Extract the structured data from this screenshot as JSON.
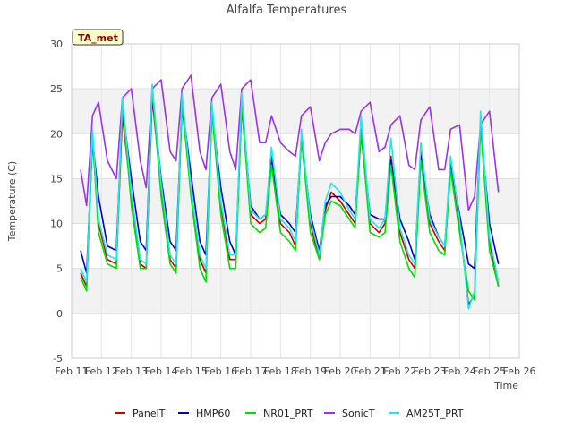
{
  "chart_data": {
    "type": "line",
    "title": "Alfalfa Temperatures",
    "xlabel": "Time",
    "ylabel": "Temperature (C)",
    "station_badge": "TA_met",
    "ylim": [
      -5,
      30
    ],
    "yticks": [
      -5,
      0,
      5,
      10,
      15,
      20,
      25,
      30
    ],
    "xlim": [
      11,
      26
    ],
    "xticks": [
      {
        "value": 11,
        "label": "Feb 11"
      },
      {
        "value": 12,
        "label": "Feb 12"
      },
      {
        "value": 13,
        "label": "Feb 13"
      },
      {
        "value": 14,
        "label": "Feb 14"
      },
      {
        "value": 15,
        "label": "Feb 15"
      },
      {
        "value": 16,
        "label": "Feb 16"
      },
      {
        "value": 17,
        "label": "Feb 17"
      },
      {
        "value": 18,
        "label": "Feb 18"
      },
      {
        "value": 19,
        "label": "Feb 19"
      },
      {
        "value": 20,
        "label": "Feb 20"
      },
      {
        "value": 21,
        "label": "Feb 21"
      },
      {
        "value": 22,
        "label": "Feb 22"
      },
      {
        "value": 23,
        "label": "Feb 23"
      },
      {
        "value": 24,
        "label": "Feb 24"
      },
      {
        "value": 25,
        "label": "Feb 25"
      },
      {
        "value": 26,
        "label": "Feb 26"
      }
    ],
    "grid": true,
    "legend_position": "bottom",
    "series": [
      {
        "name": "PanelT",
        "color": "#d00000",
        "x": [
          11.3,
          11.5,
          11.7,
          11.9,
          12.2,
          12.5,
          12.7,
          13.0,
          13.3,
          13.5,
          13.7,
          14.0,
          14.3,
          14.5,
          14.7,
          15.0,
          15.3,
          15.5,
          15.7,
          16.0,
          16.3,
          16.5,
          16.7,
          17.0,
          17.3,
          17.5,
          17.7,
          18.0,
          18.3,
          18.5,
          18.7,
          19.0,
          19.3,
          19.5,
          19.7,
          20.0,
          20.3,
          20.5,
          20.7,
          21.0,
          21.3,
          21.5,
          21.7,
          22.0,
          22.3,
          22.5,
          22.7,
          23.0,
          23.3,
          23.5,
          23.7,
          24.0,
          24.3,
          24.5,
          24.7,
          25.0,
          25.3
        ],
        "y": [
          4.5,
          3.0,
          19.5,
          10.0,
          6.0,
          5.5,
          22.0,
          13.0,
          5.5,
          5.0,
          24.0,
          14.0,
          6.0,
          5.0,
          23.0,
          14.0,
          6.0,
          4.5,
          22.5,
          12.0,
          6.0,
          6.0,
          23.0,
          11.0,
          10.0,
          10.5,
          17.5,
          10.0,
          9.0,
          7.5,
          19.5,
          10.0,
          6.0,
          11.5,
          13.5,
          12.5,
          11.0,
          10.0,
          20.0,
          10.0,
          9.0,
          10.0,
          17.5,
          9.0,
          6.0,
          5.0,
          18.0,
          10.0,
          8.0,
          7.0,
          17.0,
          10.0,
          1.0,
          2.0,
          21.5,
          8.0,
          3.0
        ]
      },
      {
        "name": "HMP60",
        "color": "#0000cc",
        "x": [
          11.3,
          11.5,
          11.7,
          11.9,
          12.2,
          12.5,
          12.7,
          13.0,
          13.3,
          13.5,
          13.7,
          14.0,
          14.3,
          14.5,
          14.7,
          15.0,
          15.3,
          15.5,
          15.7,
          16.0,
          16.3,
          16.5,
          16.7,
          17.0,
          17.3,
          17.5,
          17.7,
          18.0,
          18.3,
          18.5,
          18.7,
          19.0,
          19.3,
          19.5,
          19.7,
          20.0,
          20.3,
          20.5,
          20.7,
          21.0,
          21.3,
          21.5,
          21.7,
          22.0,
          22.3,
          22.5,
          22.7,
          23.0,
          23.3,
          23.5,
          23.7,
          24.0,
          24.3,
          24.5,
          24.7,
          25.0,
          25.3
        ],
        "y": [
          7.0,
          4.5,
          19.5,
          13.0,
          7.5,
          7.0,
          23.0,
          15.0,
          8.0,
          7.0,
          24.5,
          15.0,
          8.0,
          7.0,
          23.5,
          15.5,
          8.0,
          6.5,
          22.5,
          14.0,
          8.0,
          6.5,
          23.5,
          12.0,
          10.5,
          11.0,
          17.0,
          11.0,
          10.0,
          9.0,
          19.5,
          11.0,
          7.0,
          12.0,
          13.0,
          13.0,
          12.0,
          11.0,
          20.5,
          11.0,
          10.5,
          10.5,
          17.0,
          10.5,
          8.0,
          6.0,
          17.5,
          11.0,
          8.5,
          7.5,
          16.5,
          11.0,
          5.5,
          5.0,
          21.0,
          10.0,
          5.5
        ]
      },
      {
        "name": "NR01_PRT",
        "color": "#00dd00",
        "x": [
          11.3,
          11.5,
          11.7,
          11.9,
          12.2,
          12.5,
          12.7,
          13.0,
          13.3,
          13.5,
          13.7,
          14.0,
          14.3,
          14.5,
          14.7,
          15.0,
          15.3,
          15.5,
          15.7,
          16.0,
          16.3,
          16.5,
          16.7,
          17.0,
          17.3,
          17.5,
          17.7,
          18.0,
          18.3,
          18.5,
          18.7,
          19.0,
          19.3,
          19.5,
          19.7,
          20.0,
          20.3,
          20.5,
          20.7,
          21.0,
          21.3,
          21.5,
          21.7,
          22.0,
          22.3,
          22.5,
          22.7,
          23.0,
          23.3,
          23.5,
          23.7,
          24.0,
          24.3,
          24.5,
          24.7,
          25.0,
          25.3
        ],
        "y": [
          4.0,
          2.5,
          20.0,
          9.0,
          5.5,
          5.0,
          23.5,
          12.0,
          5.0,
          5.0,
          25.0,
          13.0,
          5.5,
          4.5,
          23.5,
          13.0,
          5.0,
          3.5,
          22.5,
          11.0,
          5.0,
          5.0,
          23.5,
          10.0,
          9.0,
          9.5,
          16.5,
          9.0,
          8.0,
          7.0,
          19.5,
          9.0,
          6.0,
          11.0,
          12.5,
          12.0,
          10.5,
          9.5,
          20.5,
          9.0,
          8.5,
          9.0,
          16.5,
          8.0,
          5.0,
          4.0,
          17.0,
          9.0,
          7.0,
          6.5,
          16.0,
          9.0,
          2.5,
          1.5,
          21.0,
          7.0,
          3.0
        ]
      },
      {
        "name": "SonicT",
        "color": "#9933ee",
        "x": [
          11.3,
          11.5,
          11.7,
          11.9,
          12.2,
          12.5,
          12.7,
          13.0,
          13.3,
          13.5,
          13.7,
          14.0,
          14.3,
          14.5,
          14.7,
          15.0,
          15.3,
          15.5,
          15.7,
          16.0,
          16.3,
          16.5,
          16.7,
          17.0,
          17.3,
          17.5,
          17.7,
          18.0,
          18.3,
          18.5,
          18.7,
          19.0,
          19.3,
          19.5,
          19.7,
          20.0,
          20.3,
          20.5,
          20.7,
          21.0,
          21.3,
          21.5,
          21.7,
          22.0,
          22.3,
          22.5,
          22.7,
          23.0,
          23.3,
          23.5,
          23.7,
          24.0,
          24.3,
          24.5,
          24.7,
          25.0,
          25.3
        ],
        "y": [
          16.0,
          12.0,
          22.0,
          23.5,
          17.0,
          15.0,
          24.0,
          25.0,
          17.0,
          14.0,
          25.0,
          26.0,
          18.0,
          17.0,
          25.0,
          26.5,
          18.0,
          16.0,
          24.0,
          25.5,
          18.0,
          16.0,
          25.0,
          26.0,
          19.0,
          19.0,
          22.0,
          19.0,
          18.0,
          17.5,
          22.0,
          23.0,
          17.0,
          19.0,
          20.0,
          20.5,
          20.5,
          20.0,
          22.5,
          23.5,
          18.0,
          18.5,
          21.0,
          22.0,
          16.5,
          16.0,
          21.5,
          23.0,
          16.0,
          16.0,
          20.5,
          21.0,
          11.5,
          13.0,
          21.0,
          22.5,
          13.5
        ]
      },
      {
        "name": "AM25T_PRT",
        "color": "#22e5ee",
        "x": [
          11.3,
          11.5,
          11.7,
          11.9,
          12.2,
          12.5,
          12.7,
          13.0,
          13.3,
          13.5,
          13.7,
          14.0,
          14.3,
          14.5,
          14.7,
          15.0,
          15.3,
          15.5,
          15.7,
          16.0,
          16.3,
          16.5,
          16.7,
          17.0,
          17.3,
          17.5,
          17.7,
          18.0,
          18.3,
          18.5,
          18.7,
          19.0,
          19.3,
          19.5,
          19.7,
          20.0,
          20.3,
          20.5,
          20.7,
          21.0,
          21.3,
          21.5,
          21.7,
          22.0,
          22.3,
          22.5,
          22.7,
          23.0,
          23.3,
          23.5,
          23.7,
          24.0,
          24.3,
          24.5,
          24.7,
          25.0,
          25.3
        ],
        "y": [
          5.0,
          3.5,
          20.5,
          10.5,
          6.5,
          6.0,
          24.0,
          13.5,
          6.0,
          5.5,
          25.5,
          14.5,
          6.5,
          5.5,
          24.5,
          14.0,
          6.5,
          5.0,
          23.5,
          12.5,
          6.5,
          6.5,
          24.5,
          11.5,
          10.5,
          11.0,
          18.5,
          10.5,
          9.5,
          8.0,
          20.5,
          10.5,
          6.5,
          12.5,
          14.5,
          13.5,
          11.5,
          10.5,
          22.0,
          10.5,
          9.5,
          10.5,
          19.5,
          9.5,
          6.5,
          5.5,
          19.0,
          10.5,
          8.5,
          7.5,
          17.5,
          10.5,
          0.5,
          2.5,
          22.5,
          8.5,
          3.5
        ]
      }
    ]
  }
}
